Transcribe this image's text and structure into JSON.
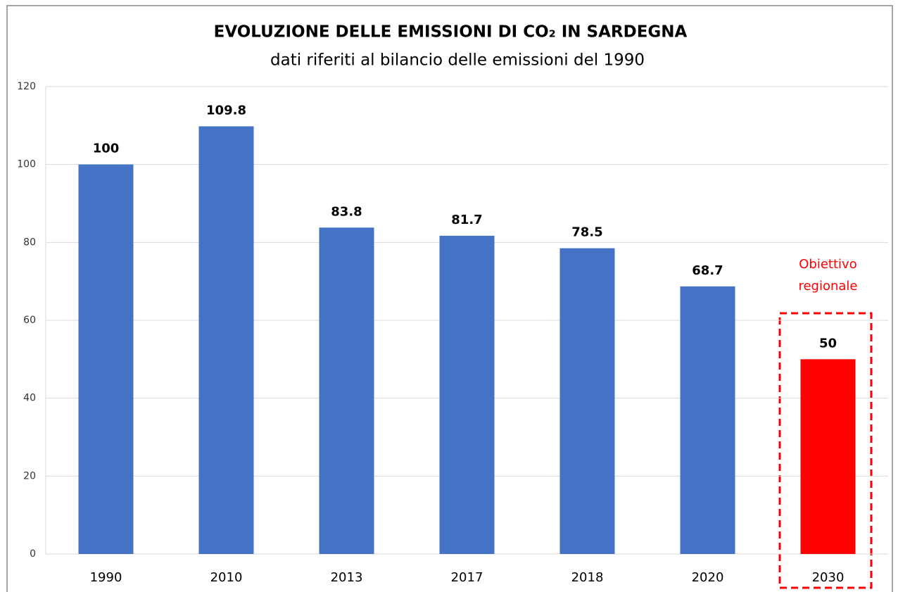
{
  "chart_data": {
    "type": "bar",
    "title": "EVOLUZIONE DELLE EMISSIONI DI CO₂ IN SARDEGNA",
    "subtitle": "dati riferiti al bilancio delle emissioni del 1990",
    "categories": [
      "1990",
      "2010",
      "2013",
      "2017",
      "2018",
      "2020",
      "2030"
    ],
    "values": [
      100,
      109.8,
      83.8,
      81.7,
      78.5,
      68.7,
      50
    ],
    "colors": [
      "#4472c4",
      "#4472c4",
      "#4472c4",
      "#4472c4",
      "#4472c4",
      "#4472c4",
      "#ff0000"
    ],
    "annotation": [
      "Obiettivo",
      "regionale"
    ],
    "annotation_color": "#ff0000",
    "ylim": [
      0,
      120
    ],
    "yticks": [
      0,
      20,
      40,
      60,
      80,
      100,
      120
    ],
    "grid": true
  }
}
